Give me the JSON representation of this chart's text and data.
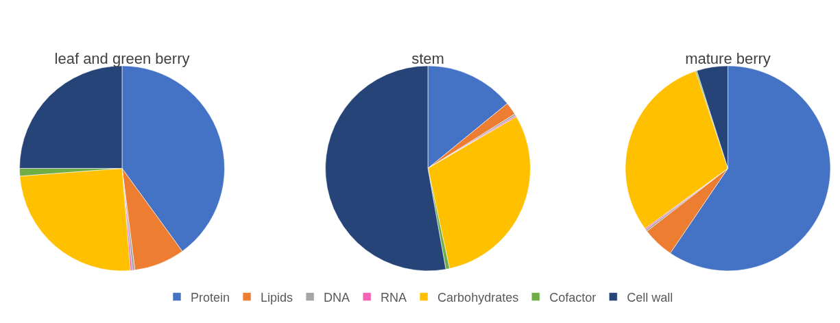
{
  "chart_data": {
    "type": "pie",
    "categories": [
      "Protein",
      "Lipids",
      "DNA",
      "RNA",
      "Carbohydrates",
      "Cofactor",
      "Cell wall"
    ],
    "colors": [
      "#4472c4",
      "#ed7d31",
      "#a5a5a5",
      "#f562b4",
      "#ffc000",
      "#70ad47",
      "#264478"
    ],
    "legend": "bottom",
    "series": [
      {
        "name": "leaf and green berry",
        "values": [
          40,
          8,
          0.4,
          0.3,
          25.1,
          1.2,
          25
        ]
      },
      {
        "name": "stem",
        "values": [
          14.1,
          2,
          0.3,
          0.2,
          30,
          0.6,
          52.8
        ]
      },
      {
        "name": "mature berry",
        "values": [
          59.5,
          5,
          0.3,
          0.2,
          29.9,
          0.2,
          4.9
        ]
      }
    ]
  }
}
